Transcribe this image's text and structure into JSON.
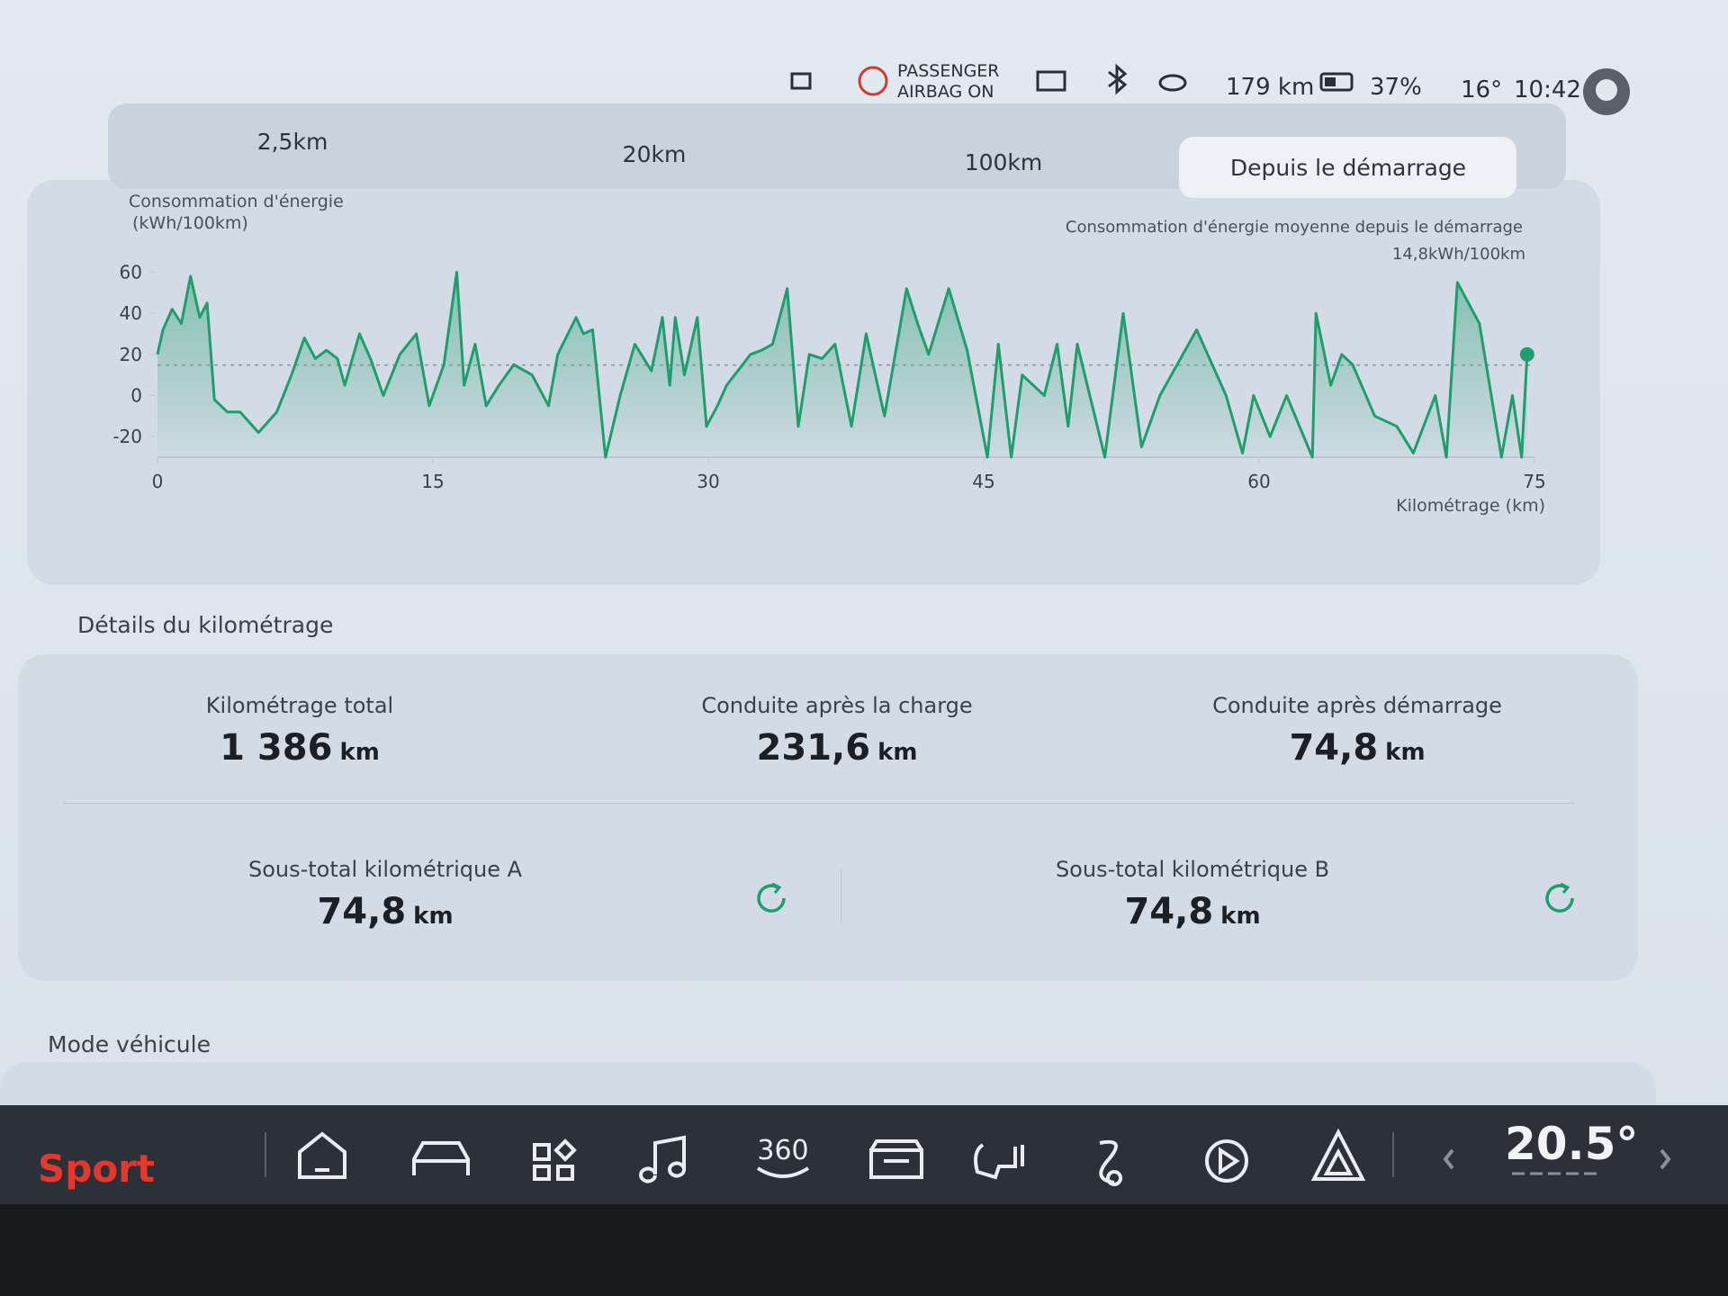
{
  "status": {
    "airbag": [
      "PASSENGER",
      "AIRBAG ON"
    ],
    "range": "179 km",
    "battery": "37%",
    "temperature": "16°",
    "time": "10:42"
  },
  "tabs": {
    "items": [
      "2,5km",
      "20km",
      "100km",
      "Depuis le démarrage"
    ],
    "active": 3
  },
  "chart_data": {
    "type": "line",
    "y_label": "Consommation d'énergie",
    "y_unit": "(kWh/100km)",
    "x_label": "Kilométrage (km)",
    "average_title": "Consommation d'énergie moyenne depuis le démarrage",
    "average": {
      "value": 14.8,
      "label": "14,8kWh/100km"
    },
    "color": "#1f9d6c",
    "xlim": [
      0,
      75
    ],
    "xticks": [
      0,
      15,
      30,
      45,
      60,
      75
    ],
    "ylim": [
      -30,
      65
    ],
    "yticks": [
      -20,
      0,
      20,
      40,
      60
    ],
    "x": [
      0,
      0.3,
      0.8,
      1.3,
      1.8,
      2.3,
      2.7,
      3.1,
      3.8,
      4.5,
      5.5,
      6.5,
      7.3,
      8,
      8.6,
      9.2,
      9.8,
      10.2,
      11,
      11.6,
      12.3,
      13.2,
      14.1,
      14.8,
      15.6,
      16.3,
      16.7,
      17.3,
      17.9,
      18.6,
      19.4,
      20.4,
      21.3,
      21.8,
      22.8,
      23.2,
      23.7,
      24.4,
      25.2,
      26,
      26.9,
      27.5,
      27.9,
      28.2,
      28.7,
      29.4,
      29.9,
      30.5,
      31,
      32.3,
      32.9,
      33.5,
      34.3,
      34.9,
      35.5,
      36.2,
      36.9,
      37.8,
      38.6,
      39.6,
      40.8,
      41.4,
      42,
      43.1,
      44.1,
      45.2,
      45.8,
      46.5,
      47.1,
      48.3,
      49,
      49.6,
      50.1,
      51.6,
      52.6,
      53.6,
      54.6,
      56.6,
      58.2,
      59.1,
      59.7,
      60.6,
      61.5,
      62.9,
      63.1,
      63.9,
      64.5,
      65.1,
      66.3,
      67.5,
      68.4,
      69.6,
      70.2,
      70.8,
      72,
      73.2,
      73.8,
      74.3,
      74.6
    ],
    "values": [
      20,
      32,
      42,
      35,
      58,
      38,
      45,
      -2,
      -8,
      -8,
      -18,
      -8,
      10,
      28,
      18,
      22,
      18,
      5,
      30,
      18,
      0,
      20,
      30,
      -5,
      15,
      60,
      5,
      25,
      -5,
      5,
      15,
      10,
      -5,
      20,
      38,
      30,
      32,
      -30,
      0,
      25,
      12,
      38,
      5,
      38,
      10,
      38,
      -15,
      -5,
      5,
      20,
      22,
      25,
      52,
      -15,
      20,
      18,
      25,
      -15,
      30,
      -10,
      52,
      35,
      20,
      52,
      22,
      -30,
      25,
      -30,
      10,
      0,
      25,
      -15,
      25,
      -30,
      40,
      -25,
      0,
      32,
      0,
      -28,
      0,
      -20,
      0,
      -30,
      40,
      5,
      20,
      15,
      -10,
      -15,
      -28,
      0,
      -30,
      55,
      35,
      -30,
      0,
      -30,
      20
    ]
  },
  "details": {
    "title": "Détails du kilométrage",
    "row1": [
      {
        "label": "Kilométrage total",
        "value": "1 386",
        "unit": "km"
      },
      {
        "label": "Conduite après la charge",
        "value": "231,6",
        "unit": "km"
      },
      {
        "label": "Conduite après démarrage",
        "value": "74,8",
        "unit": "km"
      }
    ],
    "row2": [
      {
        "label": "Sous-total kilométrique A",
        "value": "74,8",
        "unit": "km"
      },
      {
        "label": "Sous-total kilométrique B",
        "value": "74,8",
        "unit": "km"
      }
    ]
  },
  "mode": {
    "title": "Mode véhicule"
  },
  "bottom_bar": {
    "drive_mode": "Sport",
    "icon_360": "360",
    "cabin_temperature": "20.5°"
  }
}
